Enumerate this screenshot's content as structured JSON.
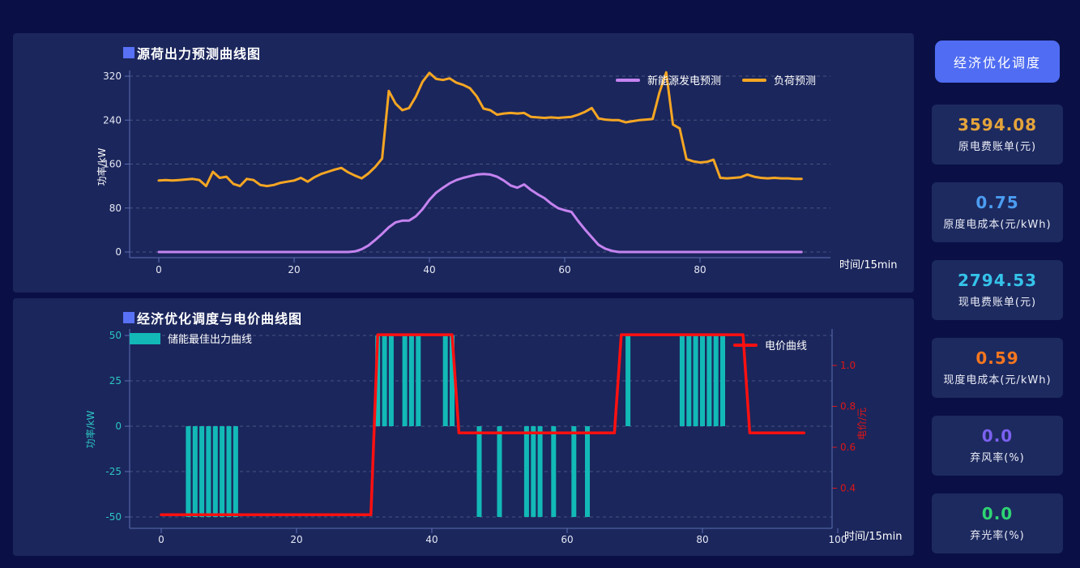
{
  "colors": {
    "background": "#0a1046",
    "panel": "#1b265c",
    "card": "#1d2a5f",
    "button": "#4f6cf2",
    "title_square": "#5871f5",
    "renewable_line": "#c583f0",
    "load_line": "#f5a623",
    "storage_bar": "#12b9b6",
    "price_line": "#fe1010",
    "left_axis_text_bottom": "#2cc7c2",
    "right_axis_text_bottom": "#e01616",
    "axis_line": "#5b6db5",
    "grid_line": "#aab0c8",
    "tick_text": "#e6e9f5"
  },
  "sidebar": {
    "button_label": "经济优化调度",
    "cards": [
      {
        "value": "3594.08",
        "label": "原电费账单(元)",
        "color": "#e5a43b"
      },
      {
        "value": "0.75",
        "label": "原度电成本(元/kWh)",
        "color": "#4b9df2"
      },
      {
        "value": "2794.53",
        "label": "现电费账单(元)",
        "color": "#35c3ea"
      },
      {
        "value": "0.59",
        "label": "现度电成本(元/kWh)",
        "color": "#f5761f"
      },
      {
        "value": "0.0",
        "label": "弃风率(%)",
        "color": "#7b61f0"
      },
      {
        "value": "0.0",
        "label": "弃光率(%)",
        "color": "#2ed573"
      }
    ]
  },
  "chart_data": [
    {
      "type": "line",
      "title": "源荷出力预测曲线图",
      "xlabel": "时间/15min",
      "ylabel": "功率/kW",
      "x_ticks": [
        0,
        20,
        40,
        60,
        80
      ],
      "y_ticks": [
        0,
        80,
        160,
        240,
        320
      ],
      "xlim": [
        0,
        95
      ],
      "ylim": [
        0,
        320
      ],
      "grid": "dashed horizontal",
      "legend_position": "top-right",
      "legend": [
        "新能源发电预测",
        "负荷预测"
      ],
      "series": [
        {
          "name": "新能源发电预测",
          "color": "#c583f0",
          "values": [
            0,
            0,
            0,
            0,
            0,
            0,
            0,
            0,
            0,
            0,
            0,
            0,
            0,
            0,
            0,
            0,
            0,
            0,
            0,
            0,
            0,
            0,
            0,
            0,
            0,
            0,
            0,
            0,
            0,
            1,
            5,
            12,
            22,
            33,
            45,
            54,
            57,
            57,
            65,
            78,
            95,
            108,
            117,
            125,
            131,
            135,
            138,
            141,
            142,
            141,
            137,
            130,
            121,
            117,
            123,
            113,
            105,
            98,
            88,
            80,
            76,
            73,
            56,
            41,
            27,
            13,
            6,
            2,
            0,
            0,
            0,
            0,
            0,
            0,
            0,
            0,
            0,
            0,
            0,
            0,
            0,
            0,
            0,
            0,
            0,
            0,
            0,
            0,
            0,
            0,
            0,
            0,
            0,
            0,
            0,
            0
          ]
        },
        {
          "name": "负荷预测",
          "color": "#f5a623",
          "values": [
            130,
            131,
            130,
            131,
            132,
            133,
            131,
            120,
            146,
            135,
            137,
            124,
            120,
            133,
            131,
            122,
            120,
            122,
            126,
            128,
            130,
            135,
            128,
            136,
            142,
            146,
            150,
            153,
            145,
            139,
            134,
            143,
            155,
            170,
            293,
            270,
            258,
            262,
            283,
            310,
            326,
            315,
            313,
            316,
            308,
            304,
            298,
            283,
            261,
            258,
            250,
            252,
            253,
            252,
            253,
            246,
            245,
            244,
            245,
            244,
            245,
            246,
            250,
            255,
            262,
            243,
            241,
            240,
            240,
            236,
            238,
            240,
            241,
            242,
            290,
            327,
            232,
            225,
            169,
            165,
            163,
            164,
            168,
            135,
            134,
            135,
            136,
            141,
            137,
            135,
            134,
            135,
            134,
            134,
            133,
            133
          ]
        }
      ]
    },
    {
      "type": "bar",
      "title": "经济优化调度与电价曲线图",
      "xlabel": "时间/15min",
      "ylabel_left": "功率/kW",
      "ylabel_right": "电价/元",
      "x_ticks": [
        0,
        20,
        40,
        60,
        80,
        100
      ],
      "y_left_ticks": [
        -50,
        -25,
        0,
        25,
        50
      ],
      "y_right_ticks": [
        0.4,
        0.6,
        0.8,
        1.0
      ],
      "xlim": [
        0,
        95
      ],
      "ylim_left": [
        -50,
        50
      ],
      "grid": "dashed horizontal",
      "legend": [
        "储能最佳出力曲线",
        "电价曲线"
      ],
      "series": [
        {
          "name": "储能最佳出力曲线",
          "type": "bar",
          "axis": "left",
          "color": "#12b9b6",
          "values": [
            0,
            0,
            0,
            0,
            -50,
            -50,
            -50,
            -50,
            -50,
            -50,
            -50,
            -50,
            0,
            0,
            0,
            0,
            0,
            0,
            0,
            0,
            0,
            0,
            0,
            0,
            0,
            0,
            0,
            0,
            0,
            0,
            0,
            0,
            50,
            50,
            50,
            0,
            50,
            50,
            50,
            0,
            0,
            0,
            50,
            50,
            0,
            0,
            0,
            -50,
            0,
            0,
            -50,
            0,
            0,
            0,
            -50,
            -50,
            -50,
            0,
            -50,
            0,
            0,
            -50,
            0,
            -50,
            0,
            0,
            0,
            0,
            0,
            50,
            0,
            0,
            0,
            0,
            0,
            0,
            0,
            50,
            50,
            50,
            50,
            50,
            50,
            50,
            0,
            0,
            0,
            0,
            0,
            0,
            0,
            0,
            0,
            0,
            0,
            0
          ]
        },
        {
          "name": "电价曲线",
          "type": "line",
          "axis": "right",
          "color": "#fe1010",
          "values": [
            0.27,
            0.27,
            0.27,
            0.27,
            0.27,
            0.27,
            0.27,
            0.27,
            0.27,
            0.27,
            0.27,
            0.27,
            0.27,
            0.27,
            0.27,
            0.27,
            0.27,
            0.27,
            0.27,
            0.27,
            0.27,
            0.27,
            0.27,
            0.27,
            0.27,
            0.27,
            0.27,
            0.27,
            0.27,
            0.27,
            0.27,
            0.27,
            1.15,
            1.15,
            1.15,
            1.15,
            1.15,
            1.15,
            1.15,
            1.15,
            1.15,
            1.15,
            1.15,
            1.15,
            0.67,
            0.67,
            0.67,
            0.67,
            0.67,
            0.67,
            0.67,
            0.67,
            0.67,
            0.67,
            0.67,
            0.67,
            0.67,
            0.67,
            0.67,
            0.67,
            0.67,
            0.67,
            0.67,
            0.67,
            0.67,
            0.67,
            0.67,
            0.67,
            1.15,
            1.15,
            1.15,
            1.15,
            1.15,
            1.15,
            1.15,
            1.15,
            1.15,
            1.15,
            1.15,
            1.15,
            1.15,
            1.15,
            1.15,
            1.15,
            1.15,
            1.15,
            1.15,
            0.67,
            0.67,
            0.67,
            0.67,
            0.67,
            0.67,
            0.67,
            0.67,
            0.67
          ]
        }
      ]
    }
  ]
}
